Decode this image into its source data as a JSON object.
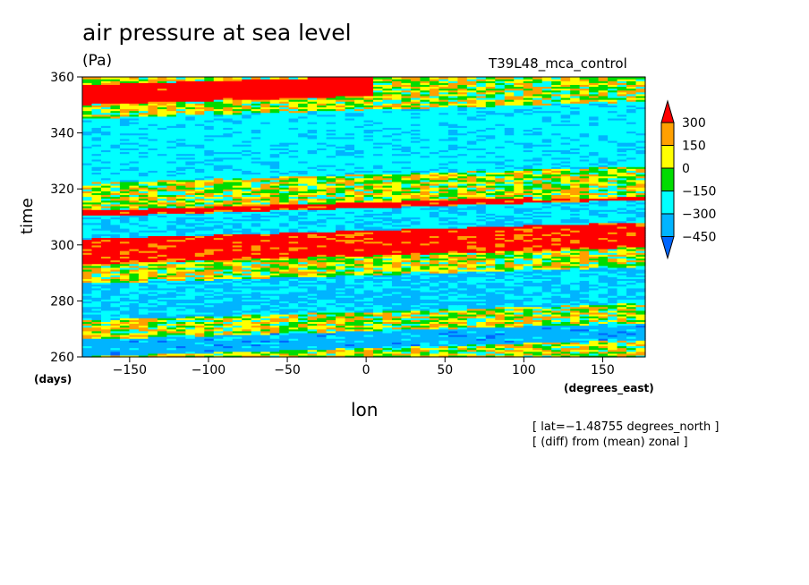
{
  "chart_data": {
    "type": "heatmap",
    "title": "air pressure at sea level",
    "units": "(Pa)",
    "run_label": "T39L48_mca_control",
    "xlabel": "lon",
    "xunit": "(degrees_east)",
    "ylabel": "time",
    "yunit": "(days)",
    "xlim": [
      -180,
      177
    ],
    "ylim": [
      260,
      360
    ],
    "x_ticks": [
      -150,
      -100,
      -50,
      0,
      50,
      100,
      150
    ],
    "y_ticks": [
      260,
      280,
      300,
      320,
      340,
      360
    ],
    "color_levels": [
      -450,
      -300,
      -150,
      0,
      150,
      300
    ],
    "color_level_labels": [
      "300",
      "150",
      "0",
      "−150",
      "−300",
      "−450"
    ],
    "colors": [
      "#0066ff",
      "#00b4ff",
      "#00ffff",
      "#00dc00",
      "#ffff00",
      "#ffa000",
      "#ff0000"
    ],
    "notes": [
      "[ lat=−1.48755 degrees_north ]",
      "[ (diff) from (mean) zonal ]"
    ],
    "bands": [
      {
        "t0": 296,
        "t1": 314,
        "lon0": -180,
        "lon1": 177,
        "value": 350
      },
      {
        "t0": 263,
        "t1": 269,
        "lon0": -180,
        "lon1": 177,
        "value": -380
      },
      {
        "t0": 276,
        "t1": 289,
        "lon0": -180,
        "lon1": 177,
        "value": -330
      },
      {
        "t0": 305,
        "t1": 313,
        "lon0": -180,
        "lon1": 177,
        "value": -420
      },
      {
        "t0": 314,
        "t1": 315,
        "lon0": -180,
        "lon1": 100,
        "value": 380
      },
      {
        "t0": 325,
        "t1": 348,
        "lon0": -180,
        "lon1": 177,
        "value": -260
      },
      {
        "t0": 353,
        "t1": 360,
        "lon0": -180,
        "lon1": 0,
        "value": 380
      }
    ]
  }
}
